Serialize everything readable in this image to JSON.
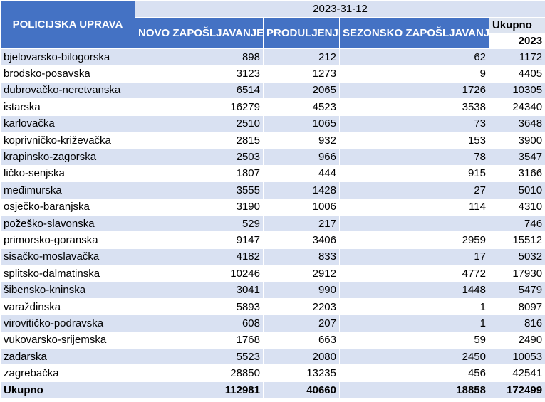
{
  "header": {
    "station_label": "POLICIJSKA UPRAVA",
    "date_label": "2023-31-12",
    "col_new": "NOVO ZAPOŠLJAVANJE",
    "col_extension": "PRODULJENJE",
    "col_seasonal": "SEZONSKO ZAPOŠLJAVANJE",
    "col_total": "Ukupno",
    "col_total_year": "2023"
  },
  "rows": [
    {
      "name": "bjelovarsko-bilogorska",
      "new": "898",
      "ext": "212",
      "seasonal": "62",
      "total": "1172"
    },
    {
      "name": "brodsko-posavska",
      "new": "3123",
      "ext": "1273",
      "seasonal": "9",
      "total": "4405"
    },
    {
      "name": "dubrovačko-neretvanska",
      "new": "6514",
      "ext": "2065",
      "seasonal": "1726",
      "total": "10305"
    },
    {
      "name": "istarska",
      "new": "16279",
      "ext": "4523",
      "seasonal": "3538",
      "total": "24340"
    },
    {
      "name": "karlovačka",
      "new": "2510",
      "ext": "1065",
      "seasonal": "73",
      "total": "3648"
    },
    {
      "name": "koprivničko-križevačka",
      "new": "2815",
      "ext": "932",
      "seasonal": "153",
      "total": "3900"
    },
    {
      "name": "krapinsko-zagorska",
      "new": "2503",
      "ext": "966",
      "seasonal": "78",
      "total": "3547"
    },
    {
      "name": "ličko-senjska",
      "new": "1807",
      "ext": "444",
      "seasonal": "915",
      "total": "3166"
    },
    {
      "name": "međimurska",
      "new": "3555",
      "ext": "1428",
      "seasonal": "27",
      "total": "5010"
    },
    {
      "name": "osječko-baranjska",
      "new": "3190",
      "ext": "1006",
      "seasonal": "114",
      "total": "4310"
    },
    {
      "name": "požeško-slavonska",
      "new": "529",
      "ext": "217",
      "seasonal": "",
      "total": "746"
    },
    {
      "name": "primorsko-goranska",
      "new": "9147",
      "ext": "3406",
      "seasonal": "2959",
      "total": "15512"
    },
    {
      "name": "sisačko-moslavačka",
      "new": "4182",
      "ext": "833",
      "seasonal": "17",
      "total": "5032"
    },
    {
      "name": "splitsko-dalmatinska",
      "new": "10246",
      "ext": "2912",
      "seasonal": "4772",
      "total": "17930"
    },
    {
      "name": "šibensko-kninska",
      "new": "3041",
      "ext": "990",
      "seasonal": "1448",
      "total": "5479"
    },
    {
      "name": "varaždinska",
      "new": "5893",
      "ext": "2203",
      "seasonal": "1",
      "total": "8097"
    },
    {
      "name": "virovitičko-podravska",
      "new": "608",
      "ext": "207",
      "seasonal": "1",
      "total": "816"
    },
    {
      "name": "vukovarsko-srijemska",
      "new": "1768",
      "ext": "663",
      "seasonal": "59",
      "total": "2490"
    },
    {
      "name": "zadarska",
      "new": "5523",
      "ext": "2080",
      "seasonal": "2450",
      "total": "10053"
    },
    {
      "name": "zagrebačka",
      "new": "28850",
      "ext": "13235",
      "seasonal": "456",
      "total": "42541"
    }
  ],
  "totals": {
    "name": "Ukupno",
    "new": "112981",
    "ext": "40660",
    "seasonal": "18858",
    "total": "172499"
  }
}
